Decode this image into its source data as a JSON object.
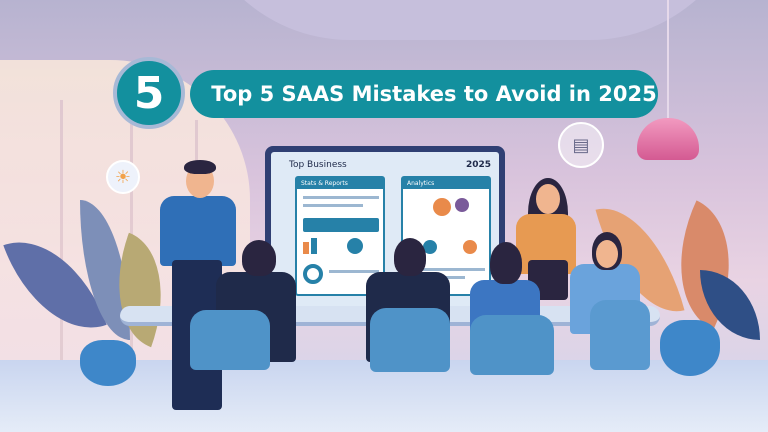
{
  "banner": {
    "number": "5",
    "title": "Top 5 SAAS Mistakes to Avoid in 2025",
    "color": "#13909e"
  },
  "screen": {
    "title": "Top Business",
    "year": "2025",
    "panel_left": "Stats & Reports",
    "panel_right": "Analytics"
  },
  "icons": [
    "lightbulb-icon",
    "document-icon",
    "pendant-lamp"
  ]
}
